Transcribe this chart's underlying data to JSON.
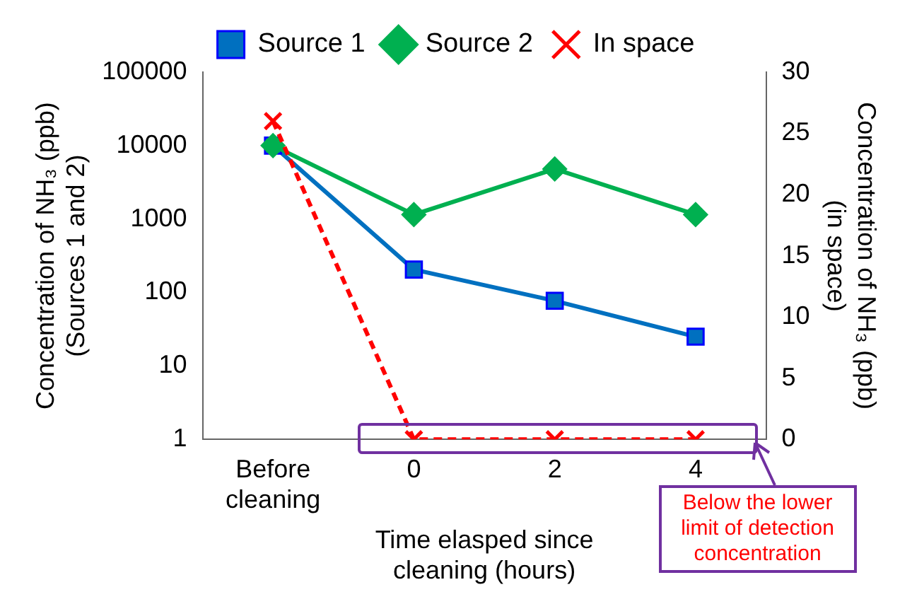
{
  "chart_data": {
    "type": "line",
    "xlabel": "Time elasped since cleaning (hours)",
    "ylabel": "Concentration of NH₃ (ppb) (Sources 1 and 2)",
    "y2label": "Concentration of NH₃ (ppb) (in space)",
    "categories": [
      "Before cleaning",
      "0",
      "2",
      "4"
    ],
    "series": [
      {
        "name": "Source 1",
        "color": "#0070c0",
        "values": [
          10000,
          205,
          77,
          25
        ],
        "marker": "square",
        "line_style": "solid"
      },
      {
        "name": "Source 2",
        "color": "#00b050",
        "values": [
          10000,
          1150,
          4800,
          1150
        ],
        "marker": "diamond",
        "line_style": "solid"
      },
      {
        "name": "In space",
        "color": "#ff0000",
        "values": [
          26,
          0,
          0,
          0
        ],
        "axis": "y2",
        "marker": "cross",
        "line_style": "dashed"
      }
    ],
    "log": "y",
    "ylim": [
      1,
      100000
    ],
    "yticks": [
      1,
      10,
      100,
      1000,
      10000,
      100000
    ],
    "y2lim": [
      0,
      30
    ],
    "y2ticks": [
      0,
      5,
      10,
      15,
      20,
      25,
      30
    ],
    "legend": "top",
    "grid": false,
    "annotations": [
      "Below the lower limit of detection concentration"
    ]
  }
}
